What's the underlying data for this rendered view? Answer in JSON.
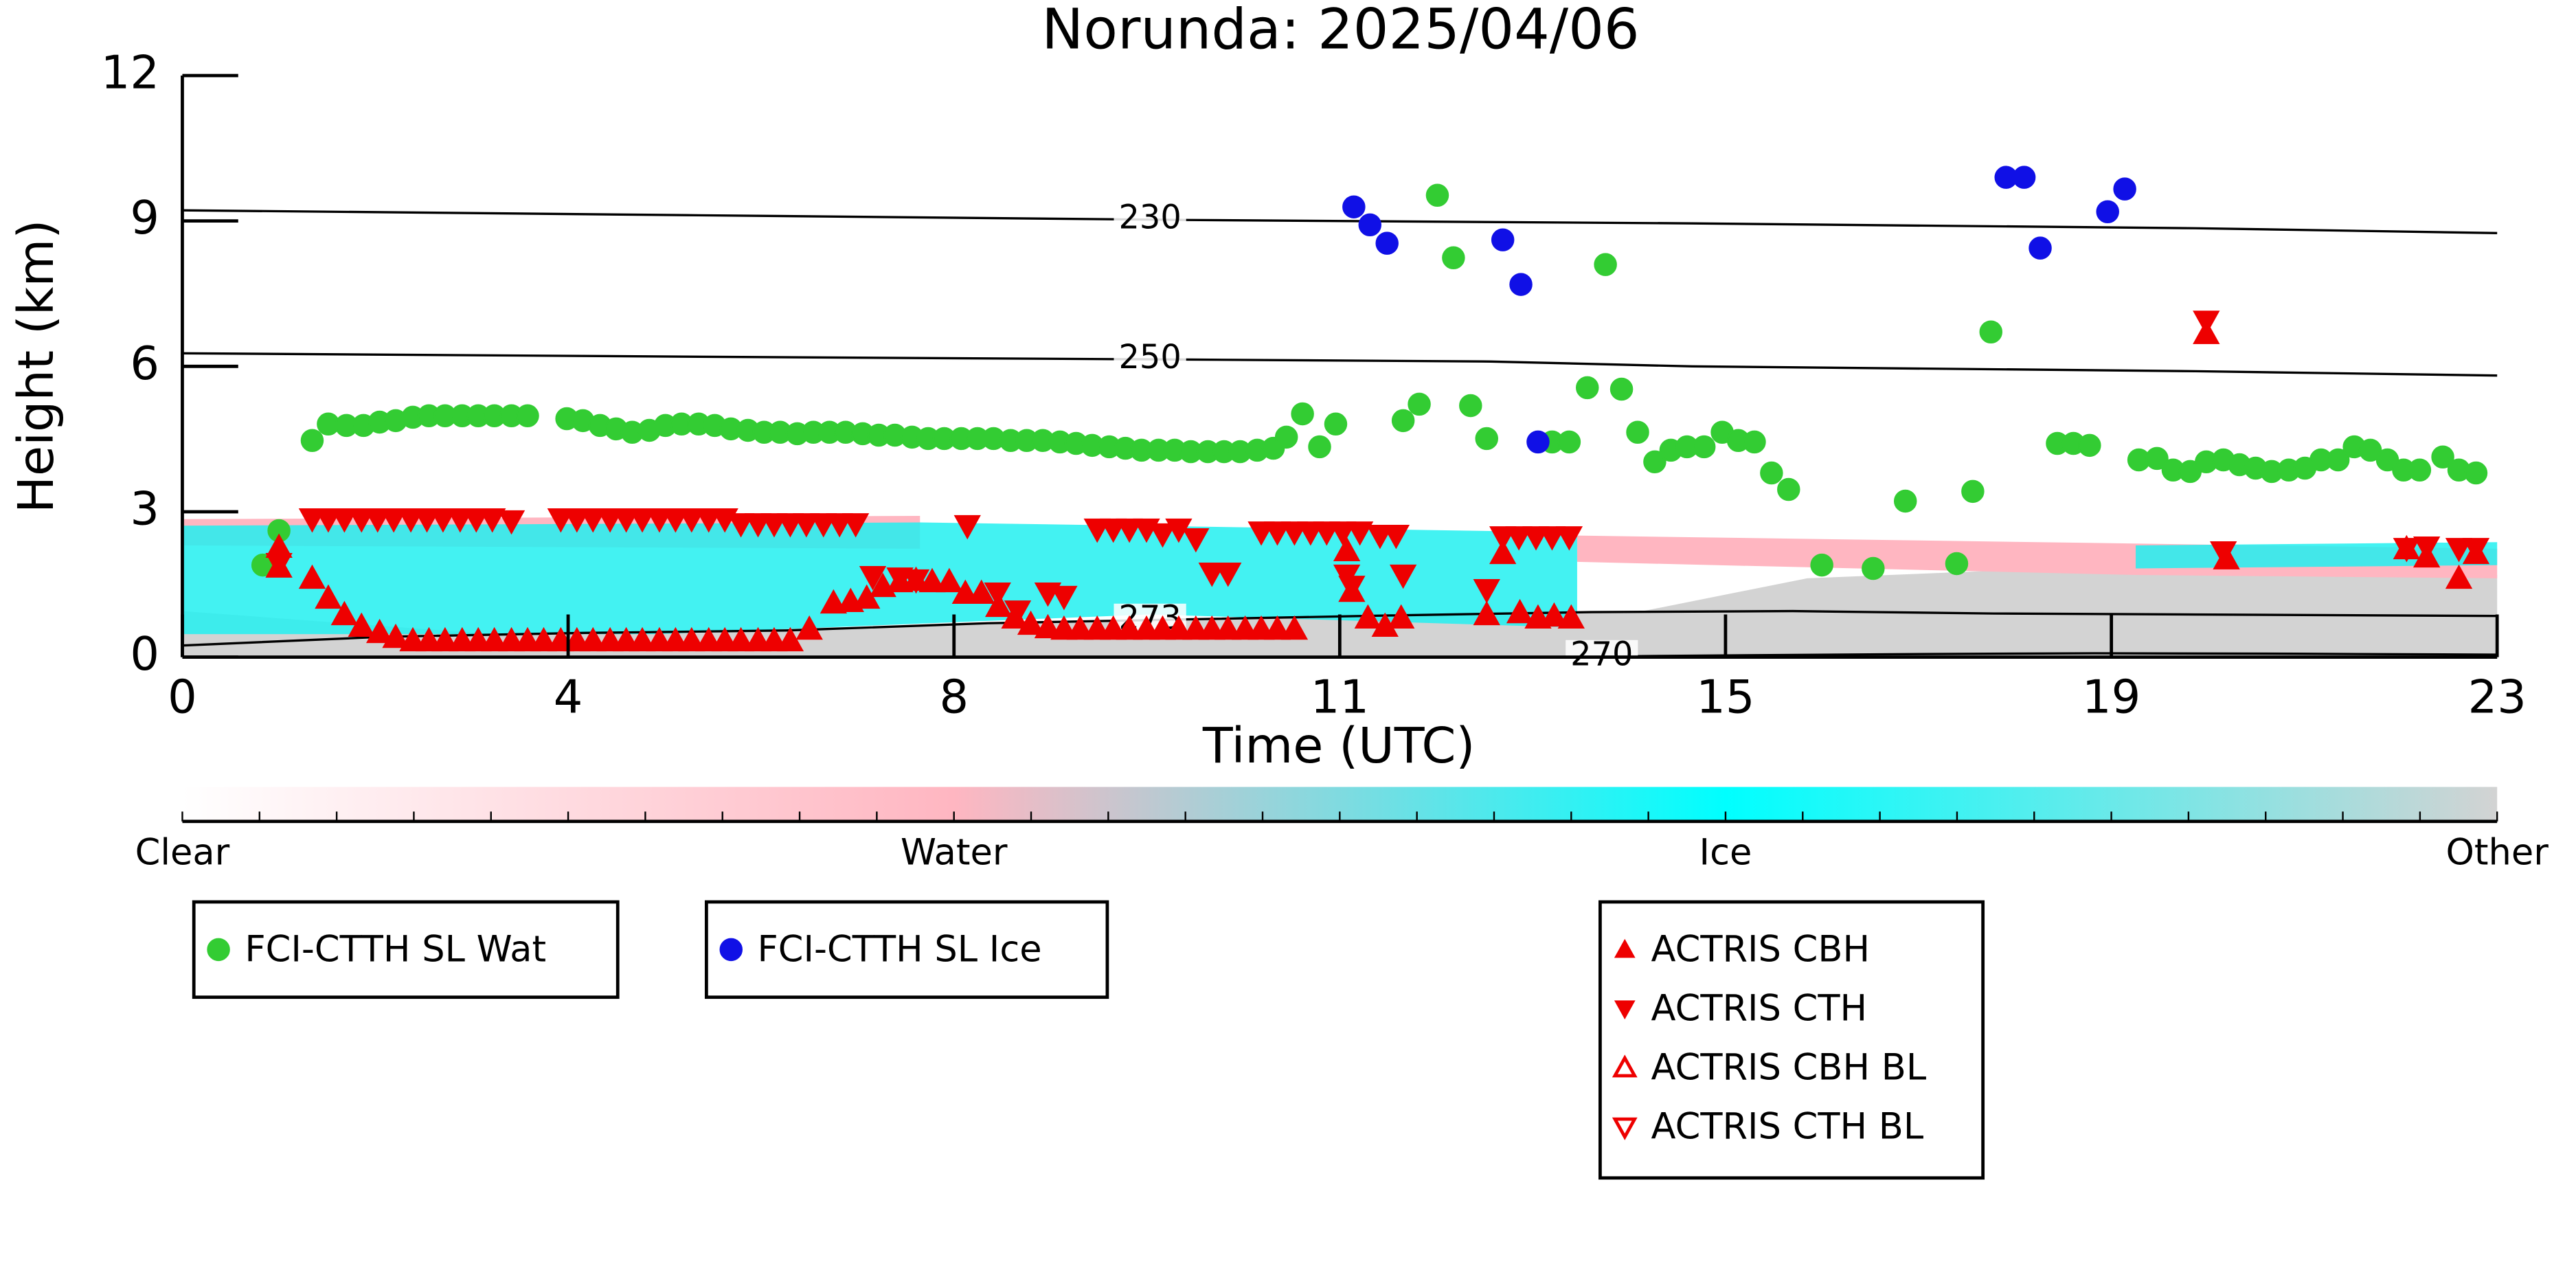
{
  "chart_data": {
    "type": "scatter",
    "title": "Norunda: 2025/04/06",
    "xlabel": "Time (UTC)",
    "ylabel": "Height (km)",
    "xlim": [
      0,
      23
    ],
    "ylim": [
      0,
      12
    ],
    "xticks": [
      0,
      {
        "value": 3.833,
        "label": "4"
      },
      {
        "value": 7.667,
        "label": "8"
      },
      {
        "value": 11.5,
        "label": "11"
      },
      {
        "value": 15.333,
        "label": "15"
      },
      {
        "value": 19.167,
        "label": "19"
      },
      23
    ],
    "yticks": [
      0,
      3,
      6,
      9,
      12
    ],
    "colorbar": {
      "labels": [
        "Clear",
        "Water",
        "Ice",
        "Other"
      ],
      "colors": [
        "#ffffff",
        "#ffb6c1",
        "#00ffff",
        "#d3d3d3"
      ]
    },
    "contours": [
      {
        "level": 230,
        "x": [
          0,
          5,
          10,
          15,
          20,
          23
        ],
        "y": [
          9.22,
          9.12,
          9.02,
          8.95,
          8.85,
          8.75
        ]
      },
      {
        "level": 250,
        "x": [
          0,
          5,
          10,
          13,
          15,
          20,
          23
        ],
        "y": [
          6.27,
          6.2,
          6.14,
          6.1,
          6.0,
          5.9,
          5.81
        ]
      },
      {
        "level": 273,
        "x": [
          0,
          2,
          4,
          6,
          8,
          10,
          12,
          14,
          16,
          18,
          20,
          23
        ],
        "y": [
          0.24,
          0.42,
          0.5,
          0.55,
          0.7,
          0.78,
          0.86,
          0.93,
          0.95,
          0.9,
          0.88,
          0.85
        ]
      },
      {
        "level": 270,
        "x": [
          13.4,
          15,
          17,
          19,
          21,
          23
        ],
        "y": [
          0,
          0.03,
          0.06,
          0.08,
          0.07,
          0.05
        ]
      }
    ],
    "series": [
      {
        "name": "FCI-CTTH SL Wat",
        "color": "#33cc33",
        "marker": "o",
        "filled": true,
        "x": [
          0.8,
          0.96,
          1.29,
          1.45,
          1.63,
          1.8,
          1.96,
          2.12,
          2.29,
          2.45,
          2.61,
          2.78,
          2.94,
          3.1,
          3.27,
          3.43,
          3.82,
          3.98,
          4.15,
          4.31,
          4.47,
          4.64,
          4.8,
          4.96,
          5.13,
          5.29,
          5.45,
          5.62,
          5.78,
          5.94,
          6.11,
          6.27,
          6.43,
          6.59,
          6.76,
          6.92,
          7.08,
          7.25,
          7.41,
          7.57,
          7.74,
          7.9,
          8.06,
          8.23,
          8.39,
          8.55,
          8.72,
          8.88,
          9.04,
          9.21,
          9.37,
          9.53,
          9.7,
          9.86,
          10.02,
          10.19,
          10.35,
          10.51,
          10.68,
          10.84,
          10.97,
          11.13,
          11.3,
          11.46,
          12.13,
          12.29,
          12.47,
          12.63,
          12.8,
          12.96,
          13.61,
          13.78,
          13.96,
          14.14,
          14.3,
          14.46,
          14.63,
          14.79,
          14.95,
          15.12,
          15.3,
          15.46,
          15.62,
          15.79,
          15.96,
          16.29,
          16.8,
          17.12,
          17.63,
          17.79,
          17.97,
          18.63,
          18.79,
          18.95,
          19.44,
          19.62,
          19.78,
          19.95,
          20.11,
          20.28,
          20.44,
          20.6,
          20.76,
          20.93,
          21.09,
          21.25,
          21.42,
          21.58,
          21.74,
          21.91,
          22.07,
          22.23,
          22.46,
          22.62,
          22.79
        ],
        "values": [
          1.9,
          2.61,
          4.47,
          4.81,
          4.78,
          4.78,
          4.85,
          4.88,
          4.95,
          4.98,
          4.98,
          4.98,
          4.98,
          4.98,
          4.98,
          4.98,
          4.92,
          4.88,
          4.78,
          4.71,
          4.64,
          4.68,
          4.78,
          4.81,
          4.81,
          4.78,
          4.71,
          4.68,
          4.64,
          4.64,
          4.61,
          4.64,
          4.64,
          4.64,
          4.61,
          4.58,
          4.58,
          4.54,
          4.51,
          4.51,
          4.51,
          4.51,
          4.51,
          4.47,
          4.47,
          4.47,
          4.44,
          4.41,
          4.37,
          4.34,
          4.31,
          4.27,
          4.27,
          4.27,
          4.24,
          4.24,
          4.24,
          4.24,
          4.27,
          4.31,
          4.54,
          5.02,
          4.34,
          4.81,
          4.88,
          5.22,
          9.53,
          8.24,
          5.19,
          4.51,
          4.44,
          4.44,
          5.56,
          8.1,
          5.53,
          4.64,
          4.03,
          4.27,
          4.34,
          4.34,
          4.64,
          4.47,
          4.44,
          3.8,
          3.46,
          1.9,
          1.83,
          3.22,
          1.93,
          3.42,
          6.71,
          4.41,
          4.41,
          4.37,
          4.07,
          4.1,
          3.86,
          3.83,
          4.03,
          4.07,
          3.97,
          3.9,
          3.83,
          3.86,
          3.9,
          4.07,
          4.07,
          4.34,
          4.27,
          4.07,
          3.86,
          3.86,
          4.13,
          3.86,
          3.8
        ]
      },
      {
        "name": "FCI-CTTH SL Ice",
        "color": "#1010e6",
        "marker": "o",
        "filled": true,
        "x": [
          11.64,
          11.8,
          11.97,
          13.12,
          13.3,
          13.47,
          18.12,
          18.3,
          18.46,
          19.13,
          19.3
        ],
        "values": [
          9.29,
          8.92,
          8.54,
          8.61,
          7.69,
          4.44,
          9.9,
          9.9,
          8.44,
          9.19,
          9.66
        ]
      },
      {
        "name": "ACTRIS CBH",
        "color": "#ee0000",
        "marker": "^",
        "filled": true,
        "x": [
          0.96,
          0.96,
          1.29,
          1.45,
          1.61,
          1.78,
          1.96,
          2.12,
          2.29,
          2.45,
          2.61,
          2.78,
          2.94,
          3.1,
          3.27,
          3.43,
          3.59,
          3.76,
          3.92,
          4.08,
          4.25,
          4.41,
          4.57,
          4.74,
          4.9,
          5.06,
          5.23,
          5.39,
          5.55,
          5.72,
          5.88,
          6.04,
          6.23,
          6.47,
          6.64,
          6.8,
          6.96,
          7.13,
          7.29,
          7.45,
          7.62,
          7.78,
          7.94,
          8.11,
          8.27,
          8.43,
          8.6,
          8.76,
          8.92,
          9.09,
          9.25,
          9.41,
          9.58,
          9.74,
          9.9,
          10.07,
          10.23,
          10.39,
          10.56,
          10.72,
          10.88,
          11.05,
          11.57,
          11.62,
          11.78,
          11.95,
          12.11,
          12.96,
          13.12,
          13.29,
          13.47,
          13.63,
          13.8,
          20.11,
          20.31,
          22.1,
          22.3,
          22.62,
          22.79
        ],
        "values": [
          2.27,
          1.86,
          1.63,
          1.22,
          0.88,
          0.64,
          0.51,
          0.41,
          0.34,
          0.34,
          0.34,
          0.34,
          0.34,
          0.34,
          0.34,
          0.34,
          0.34,
          0.34,
          0.34,
          0.34,
          0.34,
          0.34,
          0.34,
          0.34,
          0.34,
          0.34,
          0.34,
          0.34,
          0.34,
          0.34,
          0.34,
          0.34,
          0.58,
          1.12,
          1.15,
          1.22,
          1.46,
          1.56,
          1.59,
          1.56,
          1.56,
          1.32,
          1.32,
          1.05,
          0.81,
          0.68,
          0.61,
          0.58,
          0.58,
          0.58,
          0.58,
          0.58,
          0.58,
          0.58,
          0.58,
          0.58,
          0.58,
          0.58,
          0.58,
          0.58,
          0.58,
          0.58,
          2.2,
          1.36,
          0.81,
          0.64,
          0.81,
          0.88,
          2.14,
          0.92,
          0.81,
          0.85,
          0.81,
          6.68,
          2.03,
          2.24,
          2.07,
          1.63,
          2.14
        ]
      },
      {
        "name": "ACTRIS CTH",
        "color": "#ee0000",
        "marker": "v",
        "filled": true,
        "x": [
          0.96,
          1.29,
          1.45,
          1.61,
          1.78,
          1.94,
          2.1,
          2.27,
          2.43,
          2.59,
          2.76,
          2.92,
          3.08,
          3.27,
          3.76,
          3.92,
          4.08,
          4.25,
          4.41,
          4.57,
          4.74,
          4.9,
          5.06,
          5.23,
          5.39,
          5.55,
          5.72,
          5.88,
          6.04,
          6.2,
          6.37,
          6.53,
          6.69,
          6.86,
          7.13,
          7.29,
          7.8,
          8.1,
          8.3,
          8.6,
          8.76,
          9.09,
          9.25,
          9.41,
          9.58,
          9.74,
          9.9,
          10.07,
          10.23,
          10.39,
          10.72,
          10.88,
          11.05,
          11.21,
          11.37,
          11.53,
          11.7,
          11.57,
          11.62,
          11.9,
          12.06,
          12.13,
          12.96,
          13.12,
          13.28,
          13.45,
          13.61,
          13.78,
          20.11,
          20.28,
          22.1,
          22.3,
          22.62,
          22.79
        ],
        "values": [
          1.93,
          2.85,
          2.85,
          2.85,
          2.85,
          2.85,
          2.85,
          2.85,
          2.85,
          2.85,
          2.85,
          2.85,
          2.85,
          2.81,
          2.85,
          2.85,
          2.85,
          2.85,
          2.85,
          2.85,
          2.85,
          2.85,
          2.85,
          2.85,
          2.85,
          2.75,
          2.75,
          2.75,
          2.75,
          2.75,
          2.75,
          2.75,
          2.75,
          1.66,
          1.63,
          1.59,
          2.71,
          1.32,
          0.95,
          1.32,
          1.25,
          2.64,
          2.64,
          2.64,
          2.64,
          2.54,
          2.64,
          2.44,
          1.73,
          1.73,
          2.58,
          2.58,
          2.58,
          2.58,
          2.58,
          2.58,
          2.58,
          1.69,
          1.46,
          2.51,
          2.51,
          1.69,
          1.39,
          2.48,
          2.48,
          2.48,
          2.48,
          2.48,
          6.93,
          2.17,
          2.24,
          2.27,
          2.24,
          2.24
        ]
      },
      {
        "name": "ACTRIS CBH BL",
        "color": "#ee0000",
        "marker": "^",
        "filled": false,
        "x": [],
        "values": []
      },
      {
        "name": "ACTRIS CTH BL",
        "color": "#ee0000",
        "marker": "v",
        "filled": false,
        "x": [],
        "values": []
      }
    ]
  }
}
